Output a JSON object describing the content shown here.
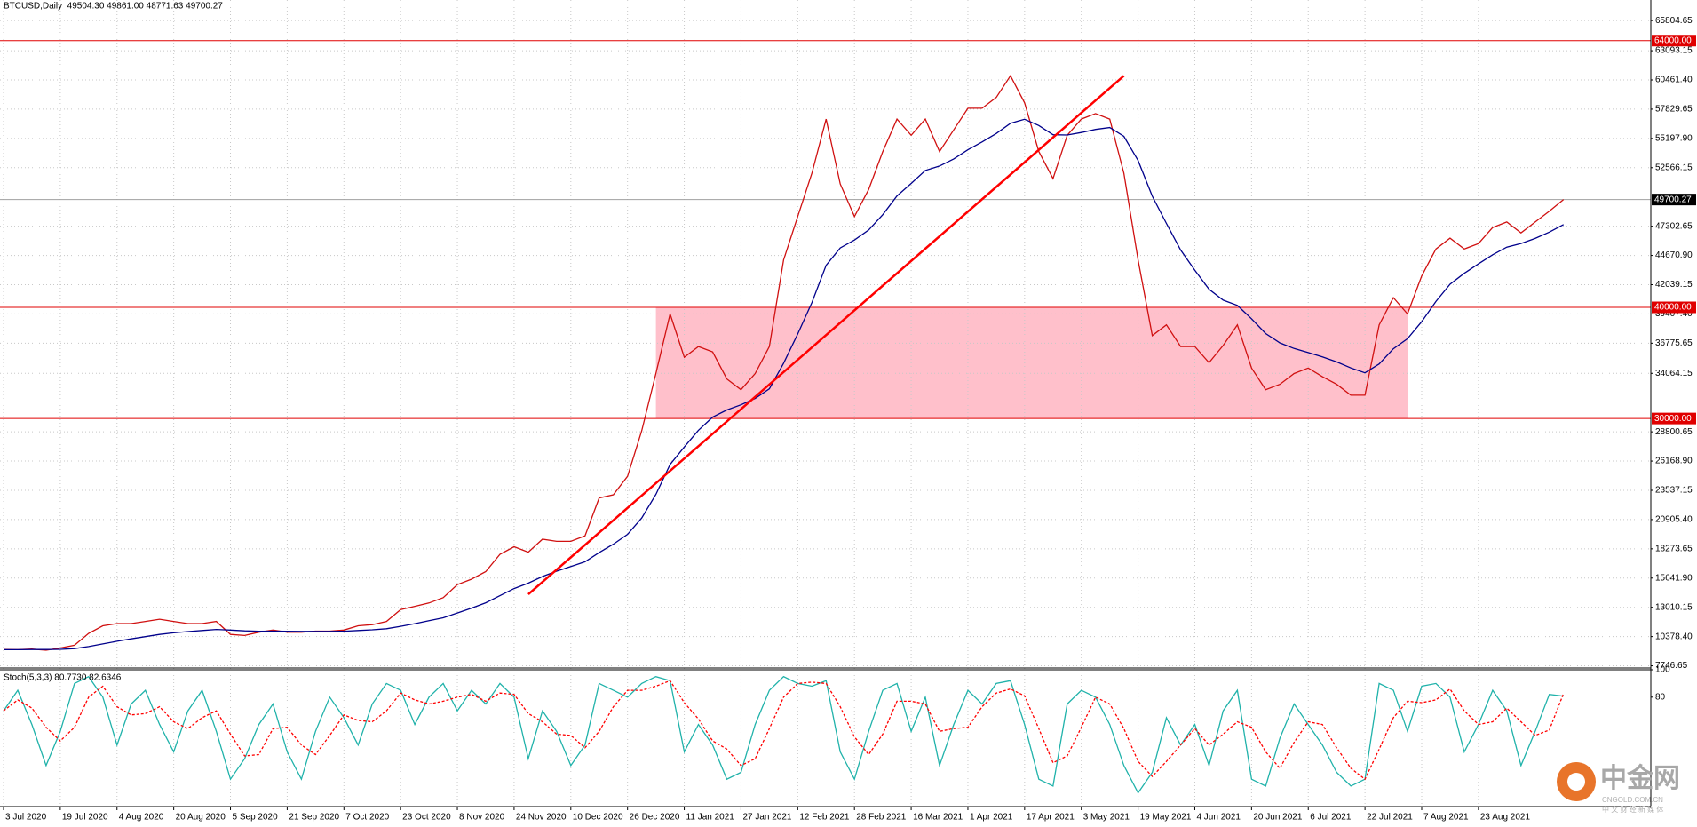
{
  "chart_data": [
    {
      "type": "line",
      "title": "BTCUSD,Daily  49504.30 49861.00 48771.63 49700.27",
      "x": [
        "3 Jul 2020",
        "7 Jul 2020",
        "11 Jul 2020",
        "15 Jul 2020",
        "19 Jul 2020",
        "23 Jul 2020",
        "27 Jul 2020",
        "31 Jul 2020",
        "4 Aug 2020",
        "8 Aug 2020",
        "12 Aug 2020",
        "16 Aug 2020",
        "20 Aug 2020",
        "24 Aug 2020",
        "28 Aug 2020",
        "1 Sep 2020",
        "5 Sep 2020",
        "9 Sep 2020",
        "13 Sep 2020",
        "17 Sep 2020",
        "21 Sep 2020",
        "25 Sep 2020",
        "29 Sep 2020",
        "3 Oct 2020",
        "7 Oct 2020",
        "11 Oct 2020",
        "15 Oct 2020",
        "19 Oct 2020",
        "23 Oct 2020",
        "27 Oct 2020",
        "31 Oct 2020",
        "4 Nov 2020",
        "8 Nov 2020",
        "12 Nov 2020",
        "16 Nov 2020",
        "20 Nov 2020",
        "24 Nov 2020",
        "28 Nov 2020",
        "2 Dec 2020",
        "6 Dec 2020",
        "10 Dec 2020",
        "14 Dec 2020",
        "18 Dec 2020",
        "22 Dec 2020",
        "26 Dec 2020",
        "30 Dec 2020",
        "3 Jan 2021",
        "7 Jan 2021",
        "11 Jan 2021",
        "15 Jan 2021",
        "19 Jan 2021",
        "23 Jan 2021",
        "27 Jan 2021",
        "31 Jan 2021",
        "4 Feb 2021",
        "8 Feb 2021",
        "12 Feb 2021",
        "16 Feb 2021",
        "20 Feb 2021",
        "24 Feb 2021",
        "28 Feb 2021",
        "4 Mar 2021",
        "8 Mar 2021",
        "12 Mar 2021",
        "16 Mar 2021",
        "20 Mar 2021",
        "24 Mar 2021",
        "28 Mar 2021",
        "1 Apr 2021",
        "5 Apr 2021",
        "9 Apr 2021",
        "13 Apr 2021",
        "17 Apr 2021",
        "21 Apr 2021",
        "25 Apr 2021",
        "29 Apr 2021",
        "3 May 2021",
        "7 May 2021",
        "11 May 2021",
        "15 May 2021",
        "19 May 2021",
        "23 May 2021",
        "27 May 2021",
        "31 May 2021",
        "4 Jun 2021",
        "8 Jun 2021",
        "12 Jun 2021",
        "16 Jun 2021",
        "20 Jun 2021",
        "24 Jun 2021",
        "28 Jun 2021",
        "2 Jul 2021",
        "6 Jul 2021",
        "10 Jul 2021",
        "14 Jul 2021",
        "18 Jul 2021",
        "22 Jul 2021",
        "26 Jul 2021",
        "30 Jul 2021",
        "3 Aug 2021",
        "7 Aug 2021",
        "11 Aug 2021",
        "15 Aug 2021",
        "19 Aug 2021",
        "23 Aug 2021",
        "27 Aug 2021",
        "31 Aug 2021",
        "4 Sep 2021",
        "8 Sep 2021",
        "12 Sep 2021",
        "16 Sep 2021"
      ],
      "series": [
        {
          "color": "#d01010",
          "values": [
            9210,
            9200,
            9250,
            9150,
            9350,
            9600,
            10670,
            11350,
            11550,
            11550,
            11740,
            11940,
            11740,
            11550,
            11550,
            11740,
            10570,
            10480,
            10770,
            10960,
            10770,
            10770,
            10870,
            10870,
            10960,
            11350,
            11450,
            11740,
            12810,
            13100,
            13400,
            13880,
            15050,
            15540,
            16220,
            17780,
            18460,
            17970,
            19140,
            18950,
            18950,
            19440,
            22850,
            23140,
            24800,
            28880,
            34050,
            39410,
            35510,
            36480,
            35990,
            33560,
            32590,
            34050,
            36480,
            44270,
            48170,
            52070,
            56940,
            51100,
            48170,
            50610,
            54020,
            56940,
            55480,
            56940,
            54020,
            55970,
            57910,
            57910,
            58890,
            60840,
            58400,
            54020,
            51580,
            55480,
            56940,
            57430,
            56940,
            52070,
            44270,
            37460,
            38430,
            36480,
            36480,
            35020,
            36570,
            38430,
            34540,
            32590,
            33080,
            34050,
            34540,
            33760,
            33080,
            32100,
            32100,
            38430,
            40870,
            39410,
            42820,
            45250,
            46230,
            45250,
            45740,
            47190,
            47680,
            46700,
            47680,
            48650,
            49700.27
          ]
        },
        {
          "color": "#00008b",
          "values": [
            9200,
            9200,
            9210,
            9210,
            9230,
            9290,
            9480,
            9720,
            9960,
            10170,
            10370,
            10570,
            10720,
            10830,
            10920,
            11020,
            10960,
            10890,
            10860,
            10870,
            10850,
            10840,
            10840,
            10840,
            10860,
            10920,
            10990,
            11080,
            11300,
            11540,
            11800,
            12070,
            12500,
            12940,
            13420,
            14060,
            14700,
            15180,
            15780,
            16260,
            16680,
            17110,
            17930,
            18690,
            19580,
            21040,
            23170,
            25860,
            27440,
            28940,
            30120,
            30770,
            31230,
            31810,
            32670,
            34970,
            37600,
            40430,
            43780,
            45350,
            46060,
            46960,
            48340,
            50020,
            51150,
            52320,
            52720,
            53360,
            54180,
            54880,
            55640,
            56560,
            56920,
            56360,
            55530,
            55510,
            55730,
            56010,
            56180,
            55390,
            53210,
            50000,
            47550,
            45160,
            43330,
            41620,
            40650,
            40180,
            38970,
            37640,
            36800,
            36300,
            35930,
            35540,
            35090,
            34550,
            34110,
            34910,
            36280,
            37180,
            38710,
            40530,
            42080,
            43060,
            43910,
            44730,
            45420,
            45750,
            46200,
            46770,
            47450
          ]
        }
      ],
      "ylim": [
        7551,
        67655
      ],
      "yticks": [
        65804.65,
        63093.15,
        {
          "value": 60461.4,
          "label": "60461.40"
        },
        57829.65,
        {
          "value": 55197.9,
          "label": "55197.90"
        },
        52566.15,
        47302.65,
        {
          "value": 44670.9,
          "label": "44670.90"
        },
        42039.15,
        {
          "value": 39407.4,
          "label": "39407.40"
        },
        36775.65,
        34064.15,
        28800.65,
        {
          "value": 26168.9,
          "label": "26168.90"
        },
        23537.15,
        {
          "value": 20905.4,
          "label": "20905.40"
        },
        18273.65,
        {
          "value": 15641.9,
          "label": "15641.90"
        },
        13010.15,
        {
          "value": 10378.4,
          "label": "10378.40"
        },
        7746.65
      ],
      "xticks": [
        "3 Jul 2020",
        "19 Jul 2020",
        "4 Aug 2020",
        "20 Aug 2020",
        "5 Sep 2020",
        "21 Sep 2020",
        "7 Oct 2020",
        "23 Oct 2020",
        "8 Nov 2020",
        "24 Nov 2020",
        "10 Dec 2020",
        "26 Dec 2020",
        "11 Jan 2021",
        "27 Jan 2021",
        "12 Feb 2021",
        "28 Feb 2021",
        "16 Mar 2021",
        "1 Apr 2021",
        "17 Apr 2021",
        "3 May 2021",
        "19 May 2021",
        "4 Jun 2021",
        "20 Jun 2021",
        "6 Jul 2021",
        "22 Jul 2021",
        "7 Aug 2021",
        "23 Aug 2021"
      ],
      "grid": true,
      "price_levels": [
        {
          "value": 64000,
          "label": "64000.00"
        },
        {
          "value": 40000,
          "label": "40000.00"
        },
        {
          "value": 30000,
          "label": "30000.00"
        }
      ],
      "level_color": "#e00000",
      "current_price": {
        "value": 49700.27,
        "label": "49700.27"
      },
      "zone": {
        "x": [
          "3 Jan 2021",
          "3 Aug 2021"
        ],
        "y": [
          30000,
          40000
        ],
        "color": "#ffc0cb"
      },
      "trendline": {
        "x": [
          "28 Nov 2020",
          "15 May 2021"
        ],
        "y": [
          14178,
          60837
        ],
        "color": "#ff0000"
      }
    },
    {
      "type": "line",
      "title": "Stoch(5,3,3) 80.7730 82.6346",
      "series": [
        {
          "color": "#20b2aa",
          "values": [
            70,
            85,
            60,
            30,
            55,
            90,
            95,
            80,
            45,
            75,
            85,
            60,
            40,
            70,
            85,
            55,
            20,
            35,
            60,
            75,
            40,
            20,
            55,
            80,
            65,
            45,
            75,
            90,
            85,
            60,
            80,
            90,
            70,
            85,
            75,
            90,
            80,
            35,
            70,
            55,
            30,
            45,
            90,
            85,
            80,
            90,
            95,
            92,
            40,
            60,
            45,
            20,
            25,
            60,
            85,
            95,
            90,
            88,
            92,
            40,
            20,
            55,
            85,
            90,
            55,
            80,
            30,
            60,
            85,
            75,
            90,
            92,
            60,
            20,
            15,
            75,
            85,
            80,
            60,
            30,
            10,
            25,
            65,
            45,
            60,
            30,
            70,
            85,
            20,
            15,
            50,
            75,
            60,
            45,
            25,
            15,
            20,
            90,
            85,
            55,
            88,
            90,
            80,
            40,
            60,
            85,
            70,
            30,
            55,
            82,
            80.773
          ]
        },
        {
          "color": "#ff0000",
          "dashed": true,
          "values": [
            70,
            78,
            72,
            58,
            48,
            58,
            80,
            88,
            73,
            67,
            68,
            73,
            62,
            57,
            65,
            70,
            53,
            37,
            38,
            57,
            58,
            45,
            38,
            52,
            67,
            63,
            62,
            70,
            83,
            78,
            75,
            77,
            80,
            82,
            77,
            83,
            82,
            68,
            62,
            53,
            52,
            43,
            55,
            73,
            85,
            85,
            88,
            92,
            76,
            64,
            48,
            42,
            30,
            35,
            57,
            80,
            90,
            91,
            90,
            73,
            51,
            38,
            53,
            77,
            77,
            75,
            55,
            57,
            58,
            73,
            83,
            86,
            81,
            57,
            32,
            37,
            58,
            80,
            75,
            57,
            33,
            22,
            33,
            45,
            57,
            45,
            53,
            62,
            58,
            40,
            28,
            47,
            62,
            60,
            43,
            28,
            20,
            42,
            65,
            77,
            76,
            78,
            86,
            70,
            60,
            62,
            72,
            62,
            52,
            56,
            82.6346
          ]
        }
      ],
      "ylim": [
        0,
        100
      ],
      "yticks": [
        100,
        80
      ]
    }
  ],
  "watermark": {
    "name": "中金网",
    "site": "CNGOLD.COM.CN",
    "slogan": "中 文 财 经 新 媒 体"
  }
}
